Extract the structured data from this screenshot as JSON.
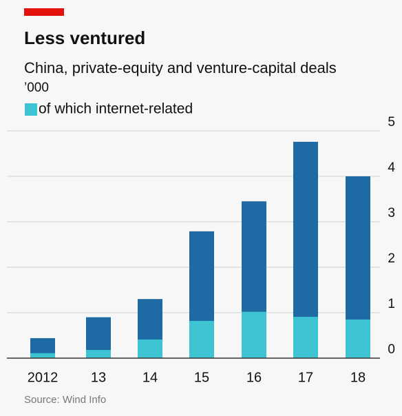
{
  "chart_data": {
    "type": "bar",
    "title": "Less ventured",
    "subtitle": "China, private-equity and venture-capital deals",
    "unit_label": "’000",
    "source": "Source: Wind Info",
    "categories": [
      "2012",
      "13",
      "14",
      "15",
      "16",
      "17",
      "18"
    ],
    "series": [
      {
        "color": "#1d6aa5",
        "values": [
          0.44,
          0.9,
          1.3,
          2.79,
          3.45,
          4.76,
          4.0
        ]
      },
      {
        "name": "of which internet-related",
        "color": "#3ec3d3",
        "values": [
          0.11,
          0.18,
          0.41,
          0.82,
          1.02,
          0.91,
          0.85
        ]
      }
    ],
    "overlay": true,
    "ylim": [
      0,
      5
    ],
    "yticks": [
      0,
      1,
      2,
      3,
      4,
      5
    ],
    "grid": true
  }
}
